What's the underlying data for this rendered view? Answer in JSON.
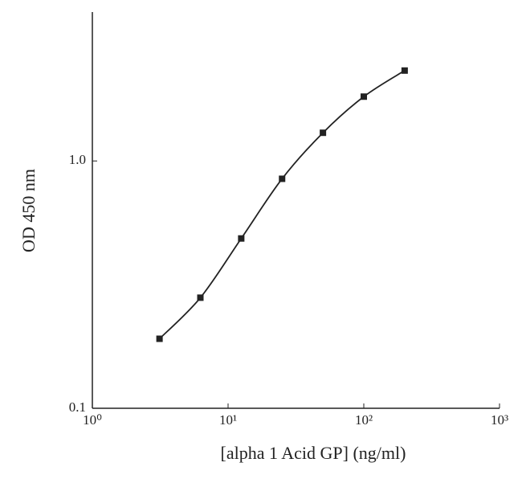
{
  "chart_data": {
    "type": "line",
    "xlabel": "[alpha 1 Acid GP] (ng/ml)",
    "ylabel": "OD 450 nm",
    "x": [
      3.125,
      6.25,
      12.5,
      25,
      50,
      100,
      200
    ],
    "series": [
      {
        "color": "#222222",
        "values": [
          0.191,
          0.28,
          0.486,
          0.847,
          1.3,
          1.82,
          2.32
        ]
      }
    ],
    "xscale": "log",
    "yscale": "log",
    "xlim": [
      1,
      1000
    ],
    "ylim": [
      0.1,
      4
    ],
    "xticks": [
      {
        "value": 1,
        "label": "10⁰"
      },
      {
        "value": 10,
        "label": "10¹"
      },
      {
        "value": 100,
        "label": "10²"
      },
      {
        "value": 1000,
        "label": "10³"
      }
    ],
    "yticks": [
      0.1,
      {
        "value": 1,
        "label": "1.0"
      }
    ]
  }
}
